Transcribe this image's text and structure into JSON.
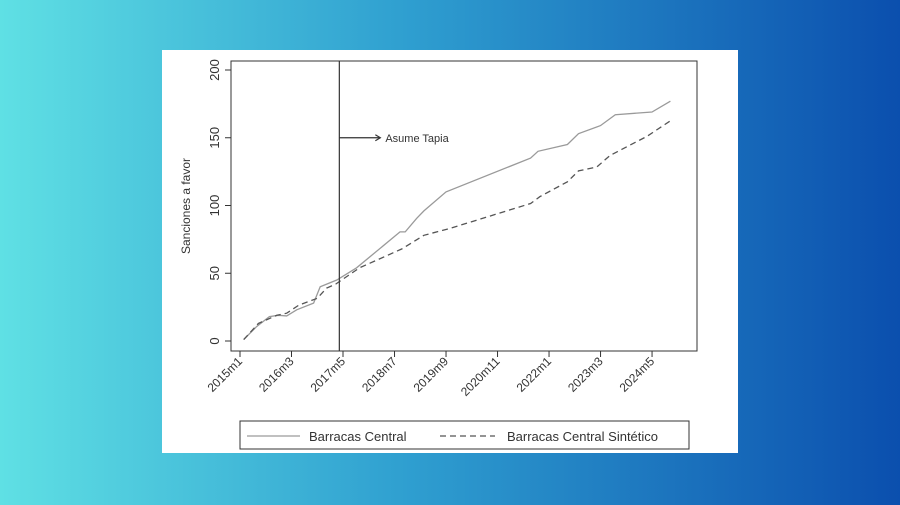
{
  "chart_data": {
    "type": "line",
    "title": "",
    "xlabel": "",
    "ylabel": "Sanciones a favor",
    "ylim": [
      0,
      200
    ],
    "yticks": [
      0,
      50,
      100,
      150,
      200
    ],
    "x_unit": "months since 2015m1",
    "xticks": [
      {
        "month": 0,
        "label": "2015m1"
      },
      {
        "month": 14,
        "label": "2016m3"
      },
      {
        "month": 28,
        "label": "2017m5"
      },
      {
        "month": 42,
        "label": "2018m7"
      },
      {
        "month": 56,
        "label": "2019m9"
      },
      {
        "month": 70,
        "label": "2020m11"
      },
      {
        "month": 84,
        "label": "2022m1"
      },
      {
        "month": 98,
        "label": "2023m3"
      },
      {
        "month": 112,
        "label": "2024m5"
      }
    ],
    "grid": false,
    "legend_position": "bottom",
    "annotation": {
      "label": "Asume Tapia",
      "x_month": 27,
      "y": 150
    },
    "series": [
      {
        "name": "Barracas Central",
        "style": "solid",
        "color": "#9a9a9a",
        "points": [
          [
            1,
            1
          ],
          [
            4.5,
            10.6
          ],
          [
            8,
            18
          ],
          [
            10.4,
            19
          ],
          [
            12.7,
            18.5
          ],
          [
            15.4,
            23
          ],
          [
            20,
            28
          ],
          [
            21.8,
            40
          ],
          [
            26.3,
            45
          ],
          [
            31.7,
            54
          ],
          [
            43.5,
            80.5
          ],
          [
            44.9,
            80.5
          ],
          [
            48,
            90.5
          ],
          [
            50,
            96
          ],
          [
            56,
            110
          ],
          [
            79,
            135
          ],
          [
            81,
            140
          ],
          [
            89,
            145
          ],
          [
            92,
            153
          ],
          [
            98,
            159
          ],
          [
            102,
            167
          ],
          [
            112,
            169
          ],
          [
            117,
            177
          ]
        ]
      },
      {
        "name": "Barracas Central Sintético",
        "style": "dashed",
        "color": "#555555",
        "points": [
          [
            1,
            1
          ],
          [
            5,
            13
          ],
          [
            10,
            19
          ],
          [
            12.7,
            20.5
          ],
          [
            16,
            26.5
          ],
          [
            21,
            31.5
          ],
          [
            23.5,
            39
          ],
          [
            26,
            42
          ],
          [
            32.5,
            54
          ],
          [
            44,
            68
          ],
          [
            50,
            78
          ],
          [
            57,
            83
          ],
          [
            79,
            101.5
          ],
          [
            81.5,
            106.5
          ],
          [
            89,
            117.5
          ],
          [
            92,
            125.5
          ],
          [
            97,
            128.5
          ],
          [
            100.6,
            137
          ],
          [
            110.6,
            151
          ],
          [
            117,
            162.5
          ]
        ]
      }
    ]
  }
}
